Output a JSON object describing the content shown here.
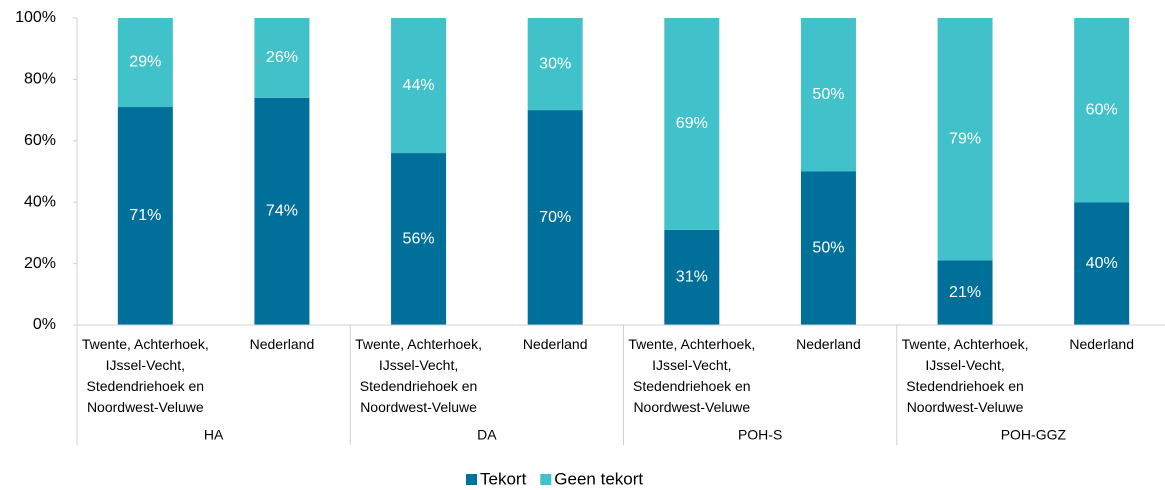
{
  "chart_data": {
    "type": "stacked_bar",
    "groups": [
      "HA",
      "DA",
      "POH-S",
      "POH-GGZ"
    ],
    "categories": [
      "Twente, Achterhoek, IJssel-Vecht, Stedendriehoek en Noordwest-Veluwe",
      "Nederland",
      "Twente, Achterhoek, IJssel-Vecht, Stedendriehoek en Noordwest-Veluwe",
      "Nederland",
      "Twente, Achterhoek, IJssel-Vecht, Stedendriehoek en Noordwest-Veluwe",
      "Nederland",
      "Twente, Achterhoek, IJssel-Vecht, Stedendriehoek en Noordwest-Veluwe",
      "Nederland"
    ],
    "series": [
      {
        "name": "Tekort",
        "color": "#00709b",
        "values": [
          71,
          74,
          56,
          70,
          31,
          50,
          21,
          40
        ],
        "value_labels": [
          "71%",
          "74%",
          "56%",
          "70%",
          "31%",
          "50%",
          "21%",
          "40%"
        ]
      },
      {
        "name": "Geen tekort",
        "color": "#41c1c9",
        "values": [
          29,
          26,
          44,
          30,
          69,
          50,
          79,
          60
        ],
        "value_labels": [
          "29%",
          "26%",
          "44%",
          "30%",
          "69%",
          "50%",
          "79%",
          "60%"
        ]
      }
    ],
    "ylim": [
      0,
      100
    ],
    "yticks": [
      {
        "value": 0,
        "label": "0%"
      },
      {
        "value": 20,
        "label": "20%"
      },
      {
        "value": 40,
        "label": "40%"
      },
      {
        "value": 60,
        "label": "60%"
      },
      {
        "value": 80,
        "label": "80%"
      },
      {
        "value": 100,
        "label": "100%"
      }
    ],
    "grid": false,
    "legend": "bottom"
  }
}
